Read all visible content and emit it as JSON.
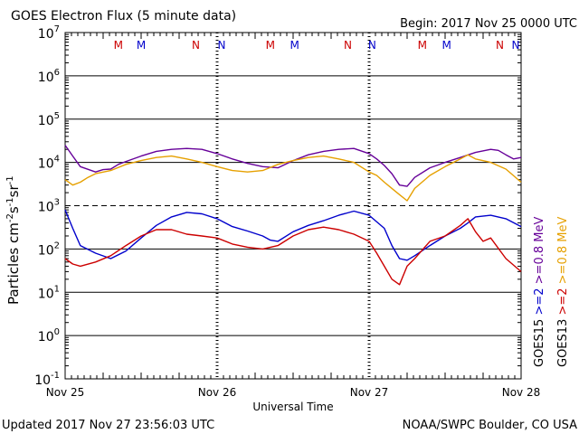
{
  "header": {
    "title": "GOES Electron Flux (5 minute data)",
    "begin": "Begin: 2017 Nov 25 0000 UTC"
  },
  "footer": {
    "updated": "Updated 2017 Nov 27 23:56:03 UTC",
    "credit": "NOAA/SWPC Boulder, CO USA"
  },
  "chart_data": {
    "type": "line",
    "title": "GOES Electron Flux (5 minute data)",
    "xlabel": "Universal Time",
    "ylabel": "Particles cm-2s-1sr-1",
    "y_scale": "log",
    "ylim": [
      0.1,
      10000000
    ],
    "y_ticks": [
      {
        "base": "10",
        "exp": "7"
      },
      {
        "base": "10",
        "exp": "6"
      },
      {
        "base": "10",
        "exp": "5"
      },
      {
        "base": "10",
        "exp": "4"
      },
      {
        "base": "10",
        "exp": "3"
      },
      {
        "base": "10",
        "exp": "2"
      },
      {
        "base": "10",
        "exp": "1"
      },
      {
        "base": "10",
        "exp": "0"
      },
      {
        "base": "10",
        "exp": "-1"
      }
    ],
    "x_ticks": [
      "Nov 25",
      "Nov 26",
      "Nov 27",
      "Nov 28"
    ],
    "xlim_days": [
      0,
      3
    ],
    "grid": true,
    "threshold_line": 1000,
    "markers": [
      {
        "label": "M",
        "day": 0.35,
        "color": "#cc0000"
      },
      {
        "label": "M",
        "day": 0.5,
        "color": "#0000cc"
      },
      {
        "label": "N",
        "day": 0.86,
        "color": "#cc0000"
      },
      {
        "label": "N",
        "day": 1.03,
        "color": "#0000cc"
      },
      {
        "label": "M",
        "day": 1.35,
        "color": "#cc0000"
      },
      {
        "label": "M",
        "day": 1.51,
        "color": "#0000cc"
      },
      {
        "label": "N",
        "day": 1.86,
        "color": "#cc0000"
      },
      {
        "label": "N",
        "day": 2.02,
        "color": "#0000cc"
      },
      {
        "label": "M",
        "day": 2.35,
        "color": "#cc0000"
      },
      {
        "label": "M",
        "day": 2.51,
        "color": "#0000cc"
      },
      {
        "label": "N",
        "day": 2.86,
        "color": "#cc0000"
      },
      {
        "label": "N",
        "day": 3.0,
        "color": "#0000cc"
      }
    ],
    "legend_right": [
      {
        "text": "GOES15",
        "color": "#000000"
      },
      {
        "text": ">=2",
        "color": "#0000cc"
      },
      {
        "text": ">=0.8  MeV",
        "color": "#660099"
      },
      {
        "text": "GOES13",
        "color": "#000000"
      },
      {
        "text": ">=2",
        "color": "#cc0000"
      },
      {
        "text": ">=0.8  MeV",
        "color": "#e6a000"
      }
    ],
    "series": [
      {
        "name": "GOES15 >=0.8 MeV",
        "color": "#660099",
        "x": [
          0.0,
          0.05,
          0.1,
          0.2,
          0.25,
          0.3,
          0.35,
          0.4,
          0.5,
          0.6,
          0.7,
          0.8,
          0.9,
          1.0,
          1.1,
          1.2,
          1.3,
          1.4,
          1.5,
          1.6,
          1.7,
          1.8,
          1.9,
          2.0,
          2.05,
          2.1,
          2.15,
          2.2,
          2.25,
          2.3,
          2.4,
          2.5,
          2.6,
          2.7,
          2.8,
          2.85,
          2.9,
          2.95,
          3.0
        ],
        "y": [
          25000,
          14000,
          8000,
          6000,
          6800,
          7000,
          9000,
          10500,
          14000,
          18000,
          20000,
          21000,
          20000,
          16000,
          12000,
          9500,
          8000,
          7500,
          11000,
          15000,
          18000,
          20000,
          21000,
          16000,
          12000,
          8500,
          5500,
          3000,
          2800,
          4500,
          7500,
          10000,
          13000,
          17000,
          20000,
          19000,
          15000,
          12000,
          13000
        ]
      },
      {
        "name": "GOES13 >=0.8 MeV",
        "color": "#e6a000",
        "x": [
          0.0,
          0.05,
          0.1,
          0.15,
          0.2,
          0.3,
          0.4,
          0.5,
          0.6,
          0.7,
          0.8,
          0.9,
          1.0,
          1.1,
          1.2,
          1.3,
          1.4,
          1.5,
          1.6,
          1.7,
          1.8,
          1.9,
          2.0,
          2.05,
          2.1,
          2.15,
          2.2,
          2.25,
          2.3,
          2.4,
          2.5,
          2.6,
          2.65,
          2.7,
          2.8,
          2.9,
          3.0
        ],
        "y": [
          4000,
          3000,
          3500,
          4500,
          5500,
          6500,
          9000,
          11000,
          13000,
          14000,
          12000,
          10000,
          8000,
          6500,
          6000,
          6500,
          9000,
          11000,
          13000,
          14000,
          12000,
          10000,
          6000,
          5000,
          3500,
          2500,
          1800,
          1300,
          2500,
          5000,
          8000,
          12000,
          15000,
          12000,
          10000,
          7000,
          3500
        ]
      },
      {
        "name": "GOES15 >=2 MeV",
        "color": "#0000cc",
        "x": [
          0.0,
          0.05,
          0.1,
          0.2,
          0.3,
          0.4,
          0.5,
          0.6,
          0.7,
          0.8,
          0.9,
          1.0,
          1.1,
          1.2,
          1.3,
          1.35,
          1.4,
          1.5,
          1.6,
          1.7,
          1.8,
          1.9,
          2.0,
          2.1,
          2.15,
          2.2,
          2.25,
          2.3,
          2.4,
          2.5,
          2.6,
          2.65,
          2.7,
          2.8,
          2.9,
          3.0
        ],
        "y": [
          800,
          300,
          120,
          80,
          60,
          90,
          180,
          350,
          550,
          700,
          650,
          500,
          330,
          260,
          200,
          160,
          150,
          250,
          350,
          450,
          600,
          750,
          600,
          300,
          120,
          60,
          55,
          70,
          120,
          200,
          300,
          400,
          550,
          600,
          500,
          330
        ]
      },
      {
        "name": "GOES13 >=2 MeV",
        "color": "#cc0000",
        "x": [
          0.0,
          0.05,
          0.1,
          0.2,
          0.3,
          0.4,
          0.5,
          0.6,
          0.7,
          0.8,
          0.9,
          1.0,
          1.1,
          1.2,
          1.3,
          1.4,
          1.5,
          1.6,
          1.7,
          1.8,
          1.9,
          2.0,
          2.05,
          2.1,
          2.15,
          2.2,
          2.25,
          2.3,
          2.4,
          2.5,
          2.6,
          2.65,
          2.7,
          2.75,
          2.8,
          2.9,
          3.0
        ],
        "y": [
          60,
          45,
          40,
          50,
          70,
          120,
          200,
          280,
          280,
          220,
          200,
          180,
          130,
          110,
          100,
          120,
          200,
          280,
          320,
          280,
          220,
          150,
          80,
          40,
          20,
          15,
          40,
          60,
          150,
          200,
          350,
          500,
          250,
          150,
          180,
          60,
          30
        ]
      }
    ]
  }
}
